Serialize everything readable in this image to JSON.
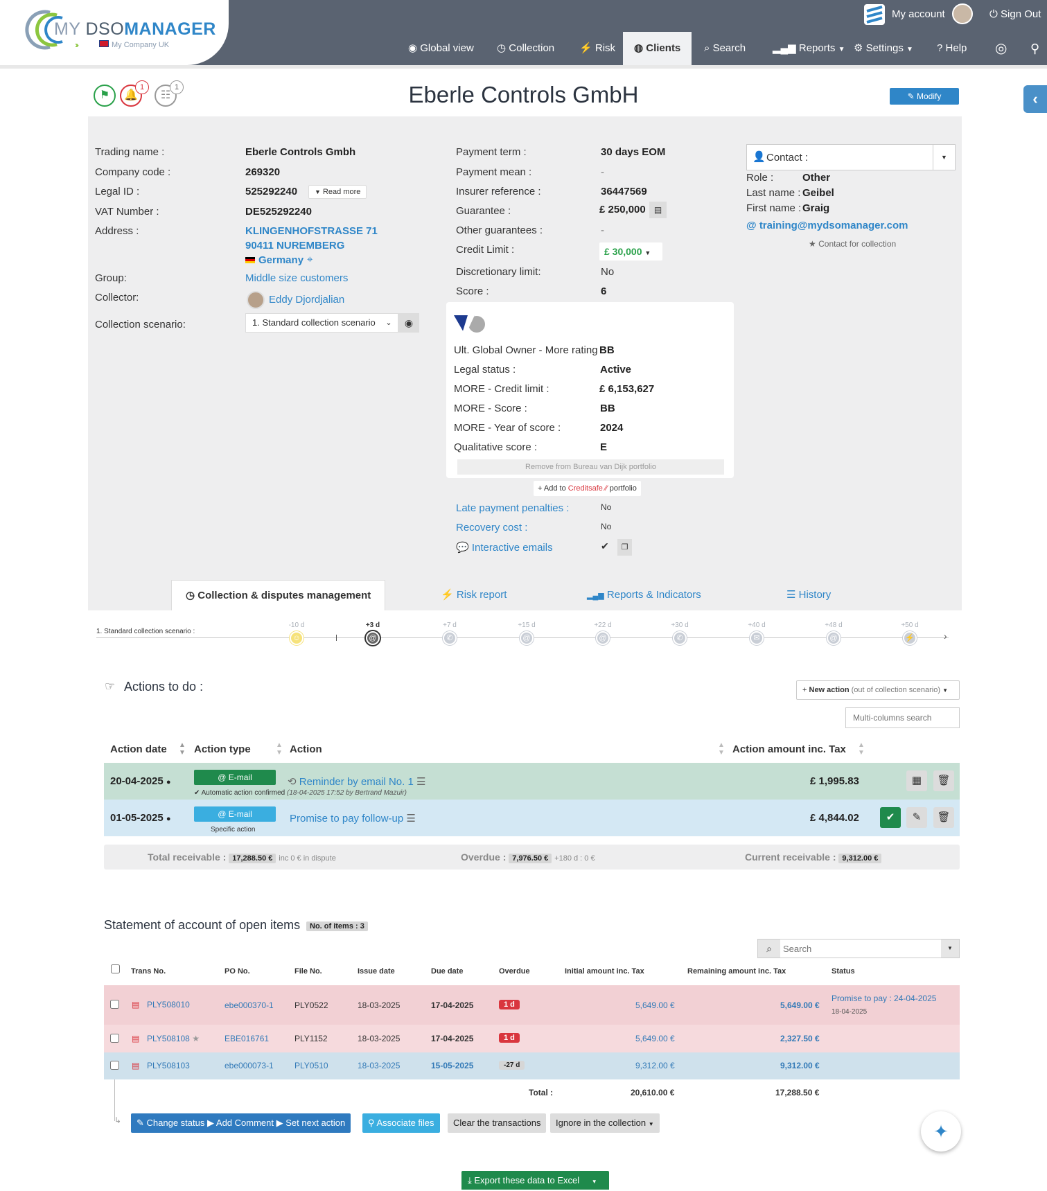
{
  "header": {
    "logo": {
      "my": "MY ",
      "dso": "DSO",
      "manager": "MANAGER",
      "company": "My Company UK"
    },
    "my_account": "My account",
    "sign_out": "Sign Out",
    "nav": [
      "Global view",
      "Collection",
      "Risk",
      "Clients",
      "Search",
      "Reports",
      "Settings",
      "Help"
    ],
    "active_nav": "Clients"
  },
  "title_area": {
    "title": "Eberle Controls GmbH",
    "modify_label": "Modify",
    "alert_count": "1",
    "robot_count": "1"
  },
  "company": {
    "trading_name_label": "Trading name :",
    "trading_name": "Eberle Controls Gmbh",
    "company_code_label": "Company code :",
    "company_code": "269320",
    "legal_id_label": "Legal ID :",
    "legal_id": "525292240",
    "read_more": "Read more",
    "vat_label": "VAT Number :",
    "vat": "DE525292240",
    "address_label": "Address :",
    "address_line1": "KLINGENHOFSTRASSE 71",
    "address_line2": "90411 NUREMBERG",
    "country": "Germany",
    "group_label": "Group:",
    "group": "Middle size customers",
    "collector_label": "Collector:",
    "collector": "Eddy Djordjalian",
    "scenario_label": "Collection scenario:",
    "scenario": "1. Standard collection scenario"
  },
  "payment": {
    "term_label": "Payment term :",
    "term": "30 days EOM",
    "mean_label": "Payment mean :",
    "mean": "-",
    "insurer_label": "Insurer reference :",
    "insurer": "36447569",
    "guarantee_label": "Guarantee :",
    "guarantee": "£ 250,000",
    "other_label": "Other guarantees :",
    "other": "-",
    "credit_label": "Credit Limit :",
    "credit": "£ 30,000",
    "discretionary_label": "Discretionary limit:",
    "discretionary": "No",
    "score_label": "Score :",
    "score": "6"
  },
  "rating": {
    "owner_label": "Ult. Global Owner - More rating",
    "owner": "BB",
    "legal_label": "Legal status :",
    "legal": "Active",
    "more_credit_label": "MORE - Credit limit :",
    "more_credit": "£ 6,153,627",
    "more_score_label": "MORE - Score :",
    "more_score": "BB",
    "year_label": "MORE - Year of score :",
    "year": "2024",
    "qual_label": "Qualitative score :",
    "qual": "E",
    "remove_btn": "Remove from Bureau van Dijk portfolio",
    "add_prefix": "Add to",
    "add_brand": "Creditsafe",
    "add_suffix": "portfolio"
  },
  "extra": {
    "late_label": "Late payment penalties :",
    "late": "No",
    "recovery_label": "Recovery cost :",
    "recovery": "No",
    "interactive_label": "Interactive emails"
  },
  "contact": {
    "header": "Contact :",
    "role_label": "Role :",
    "role": "Other",
    "last_label": "Last name :",
    "last": "Geibel",
    "first_label": "First name :",
    "first": "Graig",
    "email": "training@mydsomanager.com",
    "for_collection": "Contact for collection"
  },
  "tabs": [
    "Collection & disputes management",
    "Risk report",
    "Reports & Indicators",
    "History"
  ],
  "timeline": {
    "scenario": "1. Standard collection scenario :",
    "steps": [
      "-10 d",
      "+3 d",
      "+7 d",
      "+15 d",
      "+22 d",
      "+30 d",
      "+40 d",
      "+48 d",
      "+50 d"
    ]
  },
  "actions": {
    "title": "Actions to do :",
    "new_action": "New action",
    "new_action_note": "(out of collection scenario)",
    "search_placeholder": "Multi-columns search",
    "columns": [
      "Action date",
      "Action type",
      "Action",
      "Action amount inc. Tax"
    ],
    "rows": [
      {
        "date": "20-04-2025",
        "type": "E-mail",
        "action": "Reminder by email No. 1",
        "note": "Automatic action confirmed",
        "note_detail": "(18-04-2025 17:52 by Bertrand Mazuir)",
        "amount": "£ 1,995.83"
      },
      {
        "date": "01-05-2025",
        "type": "E-mail",
        "action": "Promise to pay follow-up",
        "note": "Specific action",
        "note_detail": "",
        "amount": "£ 4,844.02"
      }
    ],
    "totals": {
      "receivable_label": "Total receivable",
      "receivable": "17,288.50 €",
      "dispute": "inc 0 € in dispute",
      "overdue_label": "Overdue",
      "overdue": "7,976.50 €",
      "overdue_180": "+180 d : 0 €",
      "current_label": "Current receivable",
      "current": "9,312.00 €"
    }
  },
  "statement": {
    "title": "Statement of account of open items",
    "count": "No. of items : 3",
    "search_placeholder": "Search",
    "columns": [
      "Trans No.",
      "PO No.",
      "File No.",
      "Issue date",
      "Due date",
      "Overdue",
      "Initial amount inc. Tax",
      "Remaining amount inc. Tax",
      "Status"
    ],
    "rows": [
      {
        "trans": "PLY508010",
        "po": "ebe000370-1",
        "file": "PLY0522",
        "issue": "18-03-2025",
        "due": "17-04-2025",
        "overdue": "1 d",
        "initial": "5,649.00 €",
        "remaining": "5,649.00 €",
        "status": "Promise to pay : 24-04-2025",
        "status_date": "18-04-2025"
      },
      {
        "trans": "PLY508108",
        "po": "EBE016761",
        "file": "PLY1152",
        "issue": "18-03-2025",
        "due": "17-04-2025",
        "overdue": "1 d",
        "initial": "5,649.00 €",
        "remaining": "2,327.50 €",
        "status": "",
        "status_date": ""
      },
      {
        "trans": "PLY508103",
        "po": "ebe000073-1",
        "file": "PLY0510",
        "issue": "18-03-2025",
        "due": "15-05-2025",
        "overdue": "-27 d",
        "initial": "9,312.00 €",
        "remaining": "9,312.00 €",
        "status": "",
        "status_date": ""
      }
    ],
    "total_label": "Total :",
    "total_initial": "20,610.00 €",
    "total_remaining": "17,288.50 €",
    "buttons": {
      "change_status": "Change status",
      "add_comment": "Add Comment",
      "set_next": "Set next action",
      "associate": "Associate files",
      "clear": "Clear the transactions",
      "ignore": "Ignore in the collection"
    },
    "export": "Export these data to Excel"
  },
  "colors": {
    "topbar": "#5a6371",
    "accent": "#2f86c8",
    "success": "#1f8a4c",
    "danger": "#d9363e",
    "row_green": "#c5dfd3",
    "row_blue": "#d4e8f4",
    "row_red": "#f2d0d4"
  }
}
